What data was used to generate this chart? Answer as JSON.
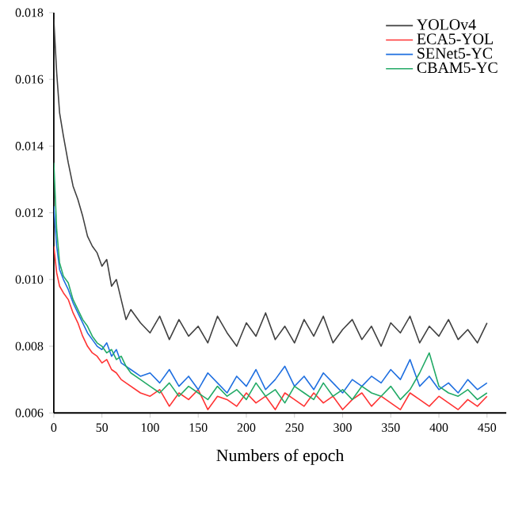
{
  "chart_data": {
    "type": "line",
    "xlabel": "Numbers of epoch",
    "xlim": [
      0,
      470
    ],
    "xticks": [
      0,
      50,
      100,
      150,
      200,
      250,
      300,
      350,
      400,
      450
    ],
    "ylim": [
      0.006,
      0.018
    ],
    "yticks": [
      {
        "value": 0.006,
        "label": "0.006"
      },
      {
        "value": 0.008,
        "label": "0.008"
      },
      {
        "value": 0.01,
        "label": "0.010"
      },
      {
        "value": 0.012,
        "label": "0.012"
      },
      {
        "value": 0.014,
        "label": "0.014"
      },
      {
        "value": 0.016,
        "label": "0.016"
      },
      {
        "value": 0.018,
        "label": "0.018"
      }
    ],
    "legend": "top right",
    "grid": false,
    "marker": "none",
    "line_style": "solid",
    "x": [
      0,
      3,
      6,
      10,
      15,
      20,
      25,
      30,
      35,
      40,
      45,
      50,
      55,
      60,
      65,
      70,
      75,
      80,
      90,
      100,
      110,
      120,
      130,
      140,
      150,
      160,
      170,
      180,
      190,
      200,
      210,
      220,
      230,
      240,
      250,
      260,
      270,
      280,
      290,
      300,
      310,
      320,
      330,
      340,
      350,
      360,
      370,
      380,
      390,
      400,
      410,
      420,
      430,
      440,
      450
    ],
    "series": [
      {
        "name": "YOLOv4",
        "color": "#404040",
        "values": [
          0.0178,
          0.0162,
          0.015,
          0.0143,
          0.0135,
          0.0128,
          0.0124,
          0.0119,
          0.0113,
          0.011,
          0.0108,
          0.0104,
          0.0106,
          0.0098,
          0.01,
          0.0094,
          0.0088,
          0.0091,
          0.0087,
          0.0084,
          0.0089,
          0.0082,
          0.0088,
          0.0083,
          0.0086,
          0.0081,
          0.0089,
          0.0084,
          0.008,
          0.0087,
          0.0083,
          0.009,
          0.0082,
          0.0086,
          0.0081,
          0.0088,
          0.0083,
          0.0089,
          0.0081,
          0.0085,
          0.0088,
          0.0082,
          0.0086,
          0.008,
          0.0087,
          0.0084,
          0.0089,
          0.0081,
          0.0086,
          0.0083,
          0.0088,
          0.0082,
          0.0085,
          0.0081,
          0.0087
        ]
      },
      {
        "name": "ECA5-YOL",
        "color": "#ff3333",
        "values": [
          0.011,
          0.0102,
          0.0098,
          0.0096,
          0.0094,
          0.009,
          0.0087,
          0.0083,
          0.008,
          0.0078,
          0.0077,
          0.0075,
          0.0076,
          0.0073,
          0.0072,
          0.007,
          0.0069,
          0.0068,
          0.0066,
          0.0065,
          0.0067,
          0.0062,
          0.0066,
          0.0064,
          0.0067,
          0.0061,
          0.0065,
          0.0064,
          0.0062,
          0.0066,
          0.0063,
          0.0065,
          0.0061,
          0.0066,
          0.0064,
          0.0062,
          0.0066,
          0.0063,
          0.0065,
          0.0061,
          0.0064,
          0.0066,
          0.0062,
          0.0065,
          0.0063,
          0.0061,
          0.0066,
          0.0064,
          0.0062,
          0.0065,
          0.0063,
          0.0061,
          0.0064,
          0.0062,
          0.0065
        ]
      },
      {
        "name": "SENet5-YC",
        "color": "#1f6fe0",
        "values": [
          0.0122,
          0.011,
          0.0103,
          0.01,
          0.0097,
          0.0093,
          0.009,
          0.0087,
          0.0084,
          0.0082,
          0.008,
          0.0079,
          0.0081,
          0.0077,
          0.0079,
          0.0075,
          0.0074,
          0.0073,
          0.0071,
          0.0072,
          0.0069,
          0.0073,
          0.0068,
          0.0071,
          0.0067,
          0.0072,
          0.0069,
          0.0066,
          0.0071,
          0.0068,
          0.0073,
          0.0067,
          0.007,
          0.0074,
          0.0068,
          0.0071,
          0.0067,
          0.0072,
          0.0069,
          0.0066,
          0.007,
          0.0068,
          0.0071,
          0.0069,
          0.0073,
          0.007,
          0.0076,
          0.0068,
          0.0071,
          0.0067,
          0.0069,
          0.0066,
          0.007,
          0.0067,
          0.0069
        ]
      },
      {
        "name": "CBAM5-YC",
        "color": "#22aa66",
        "values": [
          0.0135,
          0.0115,
          0.0105,
          0.0101,
          0.0099,
          0.0094,
          0.0091,
          0.0088,
          0.0086,
          0.0083,
          0.0081,
          0.008,
          0.0078,
          0.0079,
          0.0076,
          0.0077,
          0.0074,
          0.0072,
          0.007,
          0.0068,
          0.0066,
          0.0069,
          0.0065,
          0.0068,
          0.0066,
          0.0064,
          0.0068,
          0.0065,
          0.0067,
          0.0064,
          0.0069,
          0.0065,
          0.0067,
          0.0063,
          0.0068,
          0.0066,
          0.0064,
          0.0069,
          0.0065,
          0.0067,
          0.0064,
          0.0068,
          0.0066,
          0.0065,
          0.0068,
          0.0064,
          0.0067,
          0.0072,
          0.0078,
          0.0068,
          0.0066,
          0.0065,
          0.0067,
          0.0064,
          0.0066
        ]
      }
    ]
  }
}
